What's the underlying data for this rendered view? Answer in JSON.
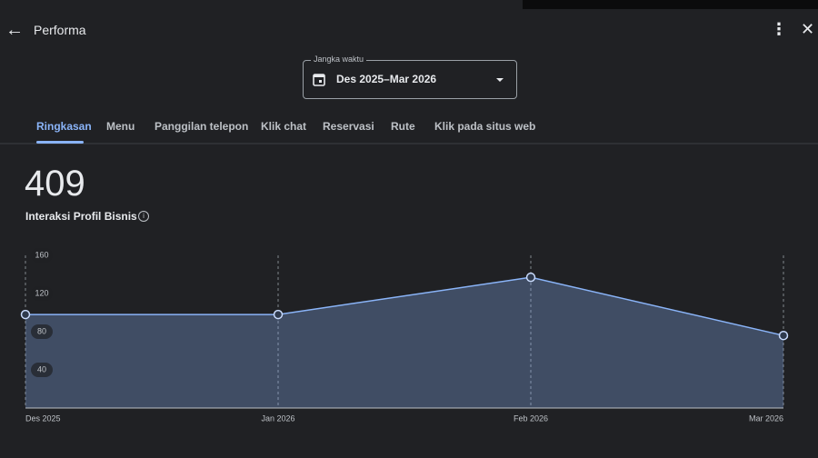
{
  "header": {
    "title": "Performa"
  },
  "date_range": {
    "label": "Jangka waktu",
    "value": "Des 2025–Mar 2026"
  },
  "tabs": [
    "Ringkasan",
    "Menu",
    "Panggilan telepon",
    "Klik chat",
    "Reservasi",
    "Rute",
    "Klik pada situs web"
  ],
  "summary": {
    "total": 409,
    "label": "Interaksi Profil Bisnis"
  },
  "chart_data": {
    "type": "area",
    "categories": [
      "Des 2025",
      "Jan 2026",
      "Feb 2026",
      "Mar 2026"
    ],
    "series": [
      {
        "color": "#8ab4f8",
        "values": [
          98,
          98,
          137,
          76
        ]
      }
    ],
    "ylim": [
      0,
      160
    ],
    "yticks": [
      40,
      80,
      120,
      160
    ]
  }
}
